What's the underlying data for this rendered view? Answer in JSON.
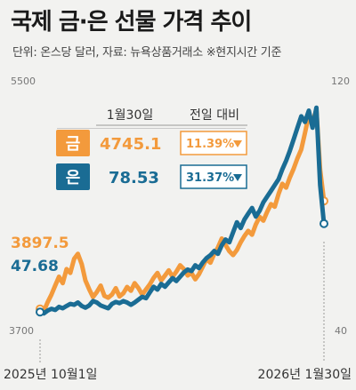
{
  "title": "국제 금·은 선물 가격 추이",
  "subtitle": "단위: 온스당 달러, 자료: 뉴욕상품거래소 ※현지시간 기준",
  "chart_data": {
    "type": "line",
    "x_start_label": "2025년 10월1일",
    "x_end_label": "2026년 1월30일",
    "left_axis": {
      "ylim": [
        3700,
        5500
      ],
      "tick_labels": [
        "5500",
        "3700"
      ]
    },
    "right_axis": {
      "ylim": [
        40,
        120
      ],
      "tick_labels": [
        "120",
        "40"
      ]
    },
    "series": [
      {
        "name": "금",
        "axis": "left",
        "color": "#f39a3c",
        "start_value": "3897.5",
        "values": [
          3897.5,
          3880,
          3950,
          4010,
          4080,
          4150,
          4100,
          4210,
          4180,
          4290,
          4330,
          4250,
          4120,
          4050,
          3990,
          4030,
          4080,
          4000,
          3985,
          4010,
          4060,
          3995,
          4020,
          4070,
          4040,
          4100,
          4060,
          4010,
          4050,
          4090,
          4140,
          4180,
          4120,
          4160,
          4200,
          4150,
          4190,
          4240,
          4210,
          4160,
          4180,
          4130,
          4170,
          4230,
          4290,
          4260,
          4330,
          4380,
          4450,
          4400,
          4350,
          4320,
          4360,
          4420,
          4470,
          4510,
          4480,
          4560,
          4620,
          4590,
          4660,
          4720,
          4700,
          4800,
          4880,
          4850,
          4930,
          5000,
          5080,
          5150,
          5280,
          5420,
          5370,
          5460,
          4990,
          4745.1
        ]
      },
      {
        "name": "은",
        "axis": "right",
        "color": "#1a6c94",
        "start_value": "47.68",
        "values": [
          47.68,
          47.2,
          48.2,
          48.8,
          48.4,
          49.5,
          49.0,
          49.8,
          50.5,
          50.2,
          51.0,
          49.8,
          49.2,
          50.0,
          51.5,
          51.0,
          50.0,
          49.5,
          49.0,
          50.5,
          51.2,
          50.8,
          51.5,
          51.0,
          50.2,
          51.0,
          52.0,
          53.0,
          52.5,
          54.5,
          56.5,
          55.5,
          57.5,
          56.5,
          58.0,
          59.5,
          58.5,
          60.0,
          61.5,
          62.5,
          62.0,
          64.0,
          63.0,
          65.0,
          66.5,
          67.5,
          69.0,
          68.0,
          71.0,
          73.0,
          72.0,
          75.5,
          79.0,
          77.0,
          80.0,
          82.0,
          84.0,
          81.0,
          83.0,
          86.0,
          88.0,
          90.0,
          92.0,
          94.0,
          97.5,
          100.5,
          104.0,
          108.0,
          112.0,
          116.0,
          114.0,
          118.0,
          112.0,
          119.0,
          92.0,
          78.53
        ]
      }
    ],
    "summary_table": {
      "date_header": "1월30일",
      "change_header": "전일 대비",
      "rows": [
        {
          "metal": "금",
          "price": "4745.1",
          "change": "11.39%",
          "direction": "down",
          "color": "#f39a3c"
        },
        {
          "metal": "은",
          "price": "78.53",
          "change": "31.37%",
          "direction": "down",
          "color": "#1a6c94"
        }
      ]
    }
  }
}
